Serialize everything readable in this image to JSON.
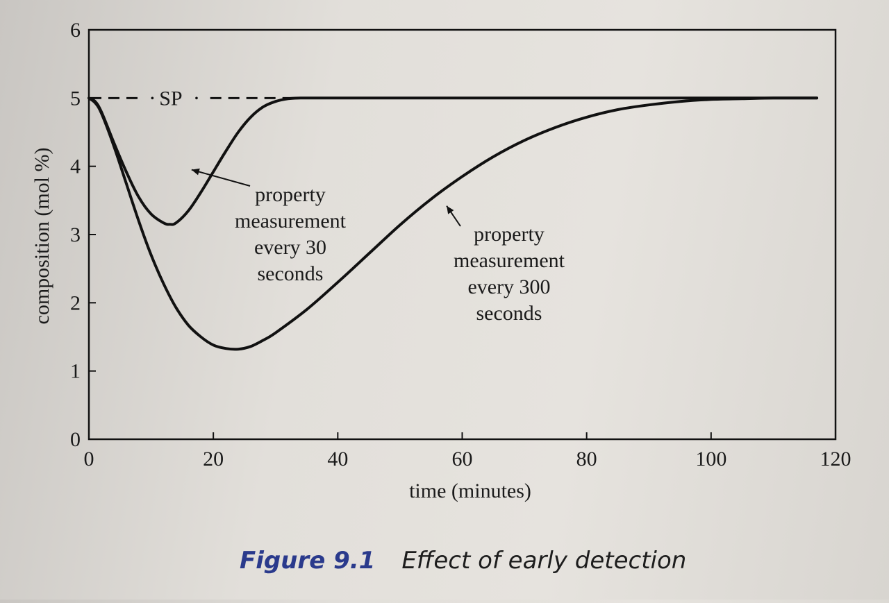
{
  "chart_data": {
    "type": "line",
    "xlabel": "time (minutes)",
    "ylabel": "composition (mol %)",
    "xlim": [
      0,
      120
    ],
    "ylim": [
      0,
      6
    ],
    "x_ticks": [
      0,
      20,
      40,
      60,
      80,
      100,
      120
    ],
    "y_ticks": [
      0,
      1,
      2,
      3,
      4,
      5,
      6
    ],
    "grid": false,
    "setpoint": {
      "label": "SP",
      "value": 5
    },
    "series": [
      {
        "name": "property measurement every 30 seconds",
        "x": [
          0,
          1,
          2,
          4,
          6,
          8,
          10,
          12,
          13,
          14,
          16,
          18,
          20,
          22,
          24,
          26,
          28,
          30,
          32,
          34,
          36,
          40,
          50,
          60,
          80,
          100,
          117
        ],
        "y": [
          5.0,
          4.95,
          4.8,
          4.35,
          3.92,
          3.55,
          3.3,
          3.17,
          3.15,
          3.17,
          3.35,
          3.62,
          3.92,
          4.22,
          4.5,
          4.72,
          4.87,
          4.95,
          4.99,
          5.0,
          5.0,
          5.0,
          5.0,
          5.0,
          5.0,
          5.0,
          5.0
        ]
      },
      {
        "name": "property measurement every 300 seconds",
        "x": [
          0,
          1,
          2,
          4,
          6,
          8,
          10,
          12,
          14,
          16,
          18,
          20,
          22,
          24,
          26,
          28,
          30,
          35,
          40,
          45,
          50,
          55,
          60,
          65,
          70,
          75,
          80,
          85,
          90,
          95,
          100,
          105,
          110,
          117
        ],
        "y": [
          5.0,
          4.93,
          4.78,
          4.3,
          3.75,
          3.2,
          2.7,
          2.28,
          1.93,
          1.67,
          1.5,
          1.38,
          1.33,
          1.32,
          1.36,
          1.45,
          1.56,
          1.9,
          2.3,
          2.72,
          3.14,
          3.52,
          3.85,
          4.14,
          4.38,
          4.57,
          4.72,
          4.83,
          4.9,
          4.95,
          4.98,
          4.99,
          5.0,
          5.0
        ]
      }
    ],
    "annotations": [
      {
        "lines": [
          "property",
          "measurement",
          "every 30",
          "seconds"
        ],
        "arrow_to": [
          16.5,
          3.95
        ]
      },
      {
        "lines": [
          "property",
          "measurement",
          "every 300",
          "seconds"
        ],
        "arrow_to": [
          57.5,
          3.42
        ]
      }
    ]
  },
  "caption": {
    "number": "Figure 9.1",
    "text": "Effect of early detection"
  }
}
